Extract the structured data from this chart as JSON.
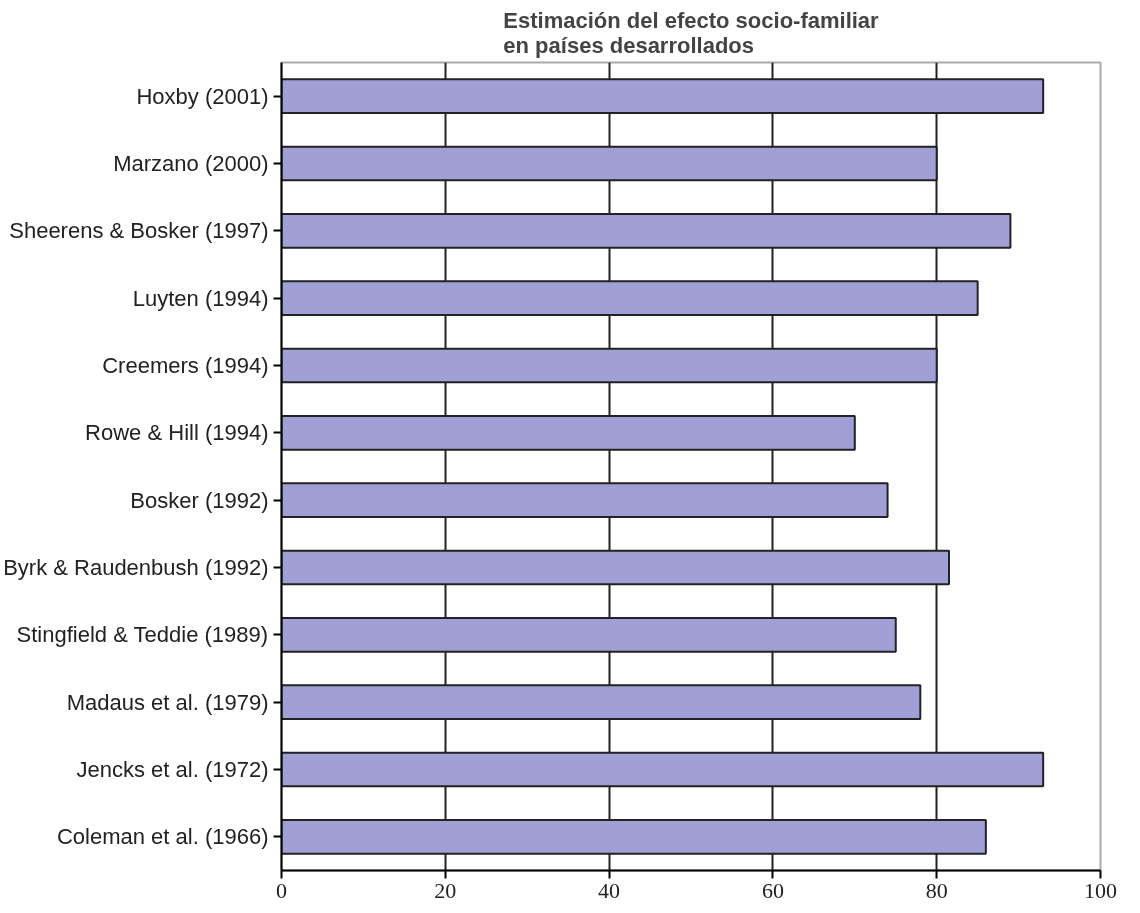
{
  "chart_data": {
    "type": "bar",
    "orientation": "horizontal",
    "title": "Estimación del efecto socio-familiar\nen países desarrollados",
    "categories": [
      "Hoxby (2001)",
      "Marzano (2000)",
      "Sheerens & Bosker (1997)",
      "Luyten (1994)",
      "Creemers (1994)",
      "Rowe & Hill (1994)",
      "Bosker (1992)",
      "Byrk & Raudenbush (1992)",
      "Stingfield & Teddie (1989)",
      "Madaus et al. (1979)",
      "Jencks et al. (1972)",
      "Coleman et al. (1966)"
    ],
    "values": [
      93,
      80,
      89,
      85,
      80,
      70,
      74,
      81.5,
      75,
      78,
      93,
      86
    ],
    "color": "#a0a0d6",
    "xlim": [
      0,
      100
    ],
    "xticks": [
      0,
      20,
      40,
      60,
      80,
      100
    ],
    "grid": "x"
  }
}
